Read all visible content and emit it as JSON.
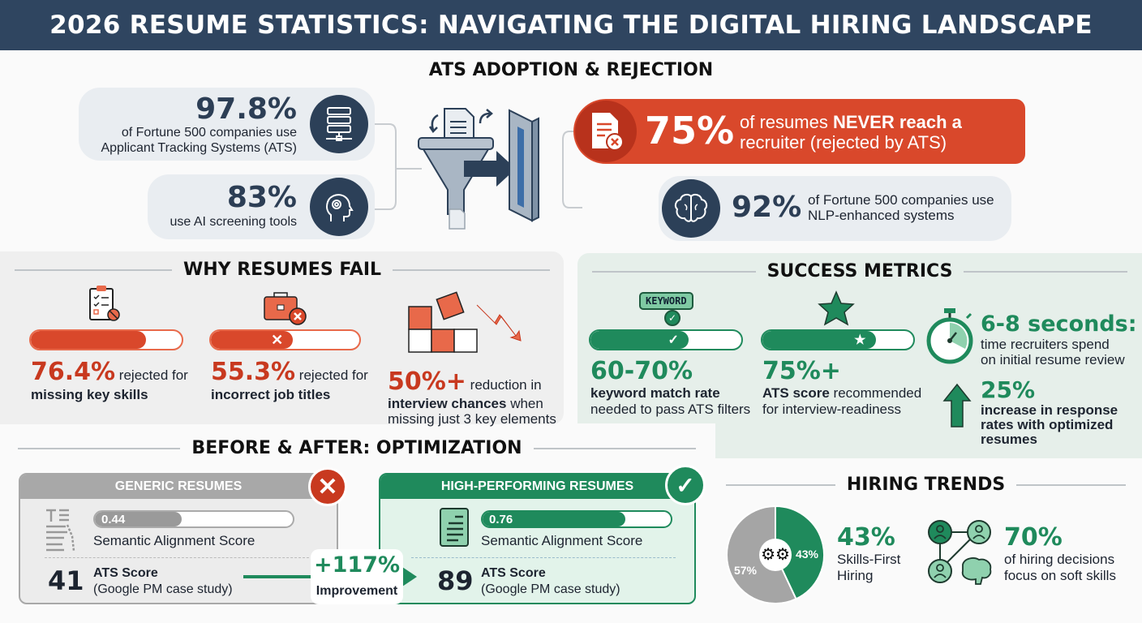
{
  "title": "2026 RESUME STATISTICS: NAVIGATING THE DIGITAL HIRING LANDSCAPE",
  "colors": {
    "navy": "#2f4560",
    "red": "#d9482b",
    "green": "#1f8a5c",
    "gray": "#a8a8a8"
  },
  "ats": {
    "title": "ATS ADOPTION & REJECTION",
    "stat1": {
      "value": "97.8%",
      "text1": "of Fortune 500 companies use",
      "text2": "Applicant Tracking Systems (ATS)",
      "icon": "server-icon"
    },
    "stat2": {
      "value": "83%",
      "text1": "use AI screening tools",
      "icon": "ai-head-icon"
    },
    "stat3": {
      "value": "75%",
      "text1": "of resumes ",
      "bold": "NEVER reach a",
      "text2": "recruiter (rejected by ATS)",
      "icon": "rejected-document-icon"
    },
    "stat4": {
      "value": "92%",
      "text1": "of Fortune 500 companies use",
      "text2": "NLP-enhanced systems",
      "icon": "brain-icon"
    }
  },
  "fail": {
    "title": "WHY RESUMES FAIL",
    "items": [
      {
        "value": "76.4%",
        "text1": " rejected for",
        "text2": "missing key skills",
        "progress": 76.4,
        "icon": "clipboard-icon"
      },
      {
        "value": "55.3%",
        "text1": " rejected for",
        "text2": "incorrect job titles",
        "progress": 55.3,
        "icon": "briefcase-x-icon"
      },
      {
        "value": "50%+",
        "text1": " reduction in",
        "text2": "interview chances",
        "text3": " when",
        "text4": "missing just 3 key elements",
        "icon": "puzzle-icon"
      }
    ]
  },
  "success": {
    "title": "SUCCESS METRICS",
    "keyword_label": "KEYWORD",
    "items": [
      {
        "value": "60-70%",
        "bold": "keyword match rate",
        "text": "needed to pass ATS filters",
        "progress": 65
      },
      {
        "value": "75%+",
        "bold": "ATS score",
        "text1": " recommended",
        "text": "for interview-readiness",
        "progress": 75
      }
    ],
    "time": {
      "value": "6-8 seconds:",
      "text1": "time recruiters spend",
      "text2": "on initial resume review"
    },
    "increase": {
      "value": "25%",
      "text1": "increase in response",
      "text2": "rates with optimized",
      "text3": "resumes"
    }
  },
  "compare": {
    "title": "BEFORE & AFTER: OPTIMIZATION",
    "generic": {
      "header": "GENERIC RESUMES",
      "score": "0.44",
      "score_value": 0.44,
      "score_label": "Semantic Alignment Score",
      "ats": "41",
      "ats_label": "ATS Score",
      "ats_note": "(Google PM case study)"
    },
    "high": {
      "header": "HIGH-PERFORMING RESUMES",
      "score": "0.76",
      "score_value": 0.76,
      "score_label": "Semantic Alignment Score",
      "ats": "89",
      "ats_label": "ATS Score",
      "ats_note": "(Google PM case study)"
    },
    "improvement": {
      "value": "+117%",
      "label": "Improvement"
    }
  },
  "trends": {
    "title": "HIRING TRENDS",
    "donut": {
      "green_pct": 43,
      "green_label": "43%",
      "gray_label": "57%"
    },
    "skills": {
      "value": "43%",
      "text1": "Skills-First",
      "text2": "Hiring"
    },
    "soft": {
      "value": "70%",
      "text1": "of hiring decisions",
      "text2": "focus on soft skills"
    }
  }
}
